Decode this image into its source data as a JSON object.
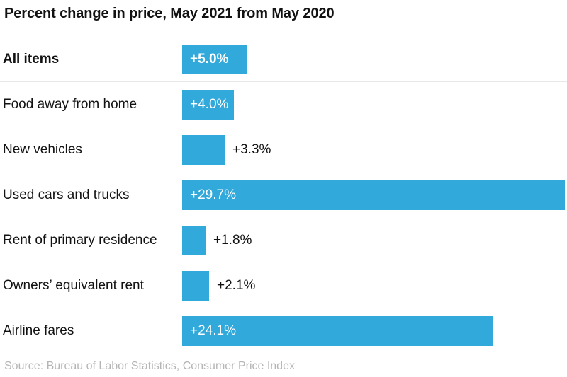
{
  "title": "Percent change in price, May 2021 from May 2020",
  "source": "Source: Bureau of Labor Statistics, Consumer Price Index",
  "colors": {
    "bar": "#31a9db",
    "title_text": "#121212",
    "category_text": "#121212",
    "value_inside_text": "#ffffff",
    "value_outside_text": "#121212",
    "separator": "#e7e7e7",
    "source_text": "#b5b5b5",
    "background": "#ffffff"
  },
  "chart_data": {
    "type": "bar",
    "orientation": "horizontal",
    "title": "Percent change in price, May 2021 from May 2020",
    "xlabel": "",
    "ylabel": "",
    "xlim": [
      0,
      29.7
    ],
    "grid": false,
    "legend": false,
    "categories": [
      "All items",
      "Food away from home",
      "New vehicles",
      "Used cars and trucks",
      "Rent of primary residence",
      "Owners’ equivalent rent",
      "Airline fares"
    ],
    "values": [
      5.0,
      4.0,
      3.3,
      29.7,
      1.8,
      2.1,
      24.1
    ],
    "value_labels": [
      "+5.0%",
      "+4.0%",
      "+3.3%",
      "+29.7%",
      "+1.8%",
      "+2.1%",
      "+24.1%"
    ],
    "value_label_position": [
      "inside",
      "inside",
      "outside",
      "inside",
      "outside",
      "outside",
      "inside"
    ],
    "emphasized": [
      true,
      false,
      false,
      false,
      false,
      false,
      false
    ],
    "separator_below_row": 0,
    "annotations": [
      "Source: Bureau of Labor Statistics, Consumer Price Index"
    ]
  }
}
